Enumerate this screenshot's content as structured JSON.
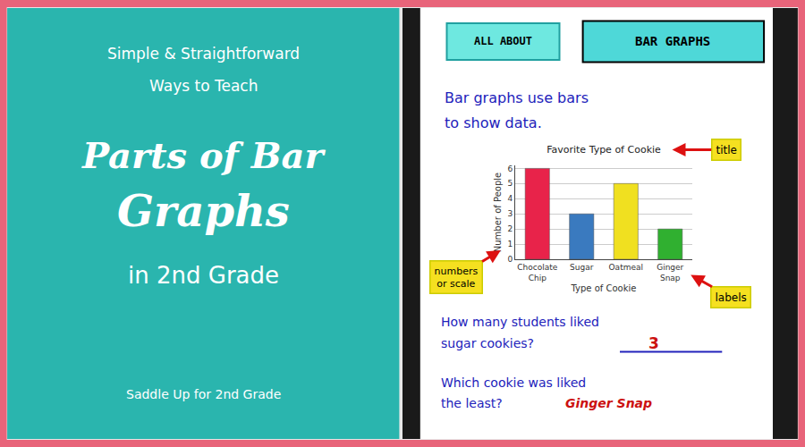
{
  "chart_data": {
    "type": "bar",
    "title": "Favorite Type of Cookie",
    "xlabel": "Type of Cookie",
    "ylabel": "Number of People",
    "categories": [
      "Chocolate\nChip",
      "Sugar",
      "Oatmeal",
      "Ginger\nSnap"
    ],
    "values": [
      6,
      3,
      5,
      2
    ],
    "colors": [
      "#e8234a",
      "#3a7abf",
      "#f0e020",
      "#30b030"
    ],
    "ylim": [
      0,
      6.2
    ],
    "yticks": [
      0,
      1,
      2,
      3,
      4,
      5,
      6
    ],
    "grid": true,
    "annotations": [
      "Simple & Straightforward",
      "Ways to Teach",
      "Parts of Bar",
      "Graphs",
      "in 2nd Grade",
      "Saddle Up for 2nd Grade",
      "ALL ABOUT",
      "BAR GRAPHS",
      "Bar graphs use bars",
      "to show data.",
      "title",
      "numbers\nor scale",
      "labels",
      "How many students liked",
      "sugar cookies?",
      "3",
      "Which cookie was liked",
      "the least?",
      "Ginger Snap"
    ]
  }
}
